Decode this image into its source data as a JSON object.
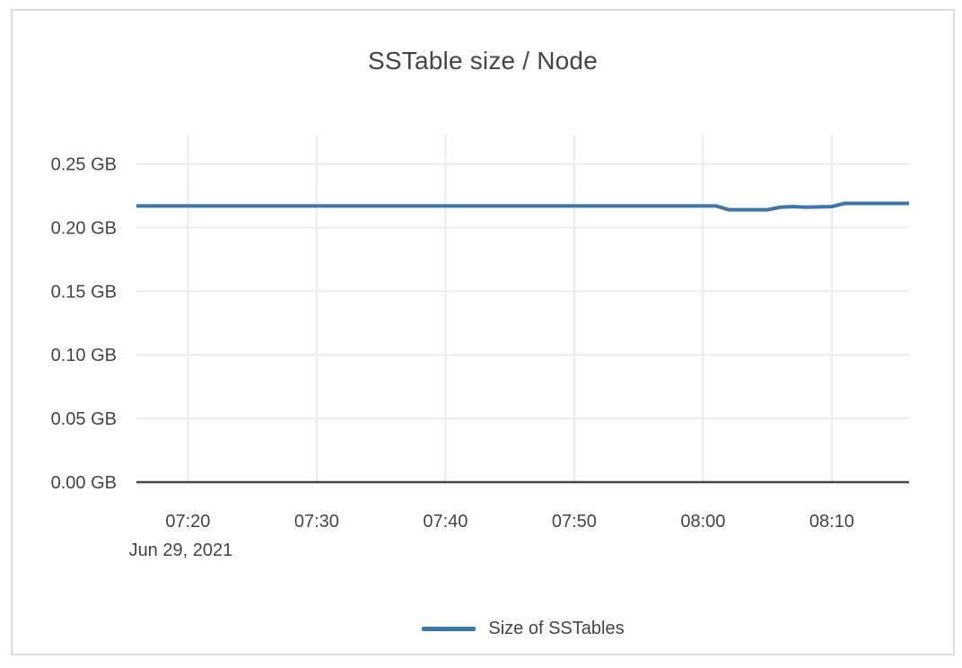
{
  "card": {
    "title": "SSTable size / Node"
  },
  "chart_data": {
    "type": "line",
    "title": "SSTable size / Node",
    "x_axis": {
      "ticks": [
        "07:20",
        "07:30",
        "07:40",
        "07:50",
        "08:00",
        "08:10"
      ],
      "date_label": "Jun 29, 2021",
      "range": [
        "07:16",
        "08:16"
      ]
    },
    "y_axis": {
      "ticks": [
        {
          "value": 0.0,
          "label": "0.00 GB"
        },
        {
          "value": 0.05,
          "label": "0.05 GB"
        },
        {
          "value": 0.1,
          "label": "0.10 GB"
        },
        {
          "value": 0.15,
          "label": "0.15 GB"
        },
        {
          "value": 0.2,
          "label": "0.20 GB"
        },
        {
          "value": 0.25,
          "label": "0.25 GB"
        }
      ],
      "range": [
        0,
        0.273
      ],
      "unit": "GB"
    },
    "grid": true,
    "legend": {
      "position": "bottom-center",
      "entries": [
        {
          "label": "Size of SSTables",
          "color": "#3b76af"
        }
      ]
    },
    "series": [
      {
        "name": "Size of SSTables",
        "color": "#3b76af",
        "points": [
          {
            "time": "07:16",
            "gb": 0.217
          },
          {
            "time": "07:20",
            "gb": 0.217
          },
          {
            "time": "07:30",
            "gb": 0.217
          },
          {
            "time": "07:40",
            "gb": 0.217
          },
          {
            "time": "07:50",
            "gb": 0.217
          },
          {
            "time": "08:00",
            "gb": 0.217
          },
          {
            "time": "08:01",
            "gb": 0.217
          },
          {
            "time": "08:02",
            "gb": 0.214
          },
          {
            "time": "08:05",
            "gb": 0.214
          },
          {
            "time": "08:06",
            "gb": 0.216
          },
          {
            "time": "08:07",
            "gb": 0.2165
          },
          {
            "time": "08:08",
            "gb": 0.216
          },
          {
            "time": "08:10",
            "gb": 0.2165
          },
          {
            "time": "08:11",
            "gb": 0.219
          },
          {
            "time": "08:16",
            "gb": 0.219
          }
        ]
      }
    ]
  },
  "colors": {
    "line": "#3b76af",
    "grid": "#ececec",
    "axis": "#444444",
    "text": "#444444",
    "card_border": "#dddddd",
    "background": "#ffffff"
  }
}
